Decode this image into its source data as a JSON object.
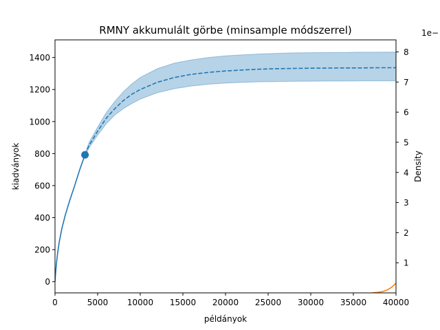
{
  "chart_data": {
    "type": "line",
    "title": "RMNY akkumulált görbe (minsample módszerrel)",
    "xlabel": "példányok",
    "ylabel": "kiadványok",
    "y2label": "Density",
    "y2_offset_text": "1e−",
    "xlim": [
      0,
      40000
    ],
    "ylim": [
      -70,
      1510
    ],
    "y2lim": [
      0,
      8.4
    ],
    "xticks": [
      0,
      5000,
      10000,
      15000,
      20000,
      25000,
      30000,
      35000,
      40000
    ],
    "xtick_labels": [
      "0",
      "5000",
      "10000",
      "15000",
      "20000",
      "25000",
      "30000",
      "35000",
      "40000"
    ],
    "yticks": [
      0,
      200,
      400,
      600,
      800,
      1000,
      1200,
      1400
    ],
    "ytick_labels": [
      "0",
      "200",
      "400",
      "600",
      "800",
      "1000",
      "1200",
      "1400"
    ],
    "y2ticks": [
      1,
      2,
      3,
      4,
      5,
      6,
      7,
      8
    ],
    "y2tick_labels": [
      "1",
      "2",
      "3",
      "4",
      "5",
      "6",
      "7",
      "8"
    ],
    "grid": false,
    "observed_point": {
      "x": 3520,
      "y": 792
    },
    "series": [
      {
        "role": "interpolation",
        "style": "solid",
        "color": "#1f77b4",
        "x": [
          0,
          50,
          150,
          300,
          500,
          800,
          1200,
          1700,
          2300,
          2900,
          3520
        ],
        "y": [
          0,
          40,
          105,
          175,
          248,
          330,
          415,
          503,
          598,
          700,
          792
        ]
      },
      {
        "role": "extrapolation",
        "style": "dashed",
        "color": "#1f77b4",
        "x": [
          3520,
          4000,
          5000,
          6000,
          7000,
          8000,
          9000,
          10000,
          12000,
          14000,
          16000,
          18000,
          20000,
          22000,
          24000,
          26000,
          28000,
          30000,
          32000,
          34000,
          36000,
          38000,
          40000
        ],
        "y": [
          792,
          852,
          940,
          1020,
          1080,
          1130,
          1170,
          1200,
          1245,
          1275,
          1295,
          1307,
          1316,
          1322,
          1327,
          1330,
          1332,
          1333,
          1334,
          1335,
          1335,
          1336,
          1336
        ]
      },
      {
        "role": "confidence-upper",
        "color": "#1f77b4",
        "x": [
          3520,
          4000,
          5000,
          6000,
          7000,
          8000,
          9000,
          10000,
          12000,
          14000,
          16000,
          18000,
          20000,
          22000,
          24000,
          26000,
          28000,
          30000,
          32000,
          34000,
          36000,
          38000,
          40000
        ],
        "y": [
          800,
          870,
          965,
          1055,
          1125,
          1185,
          1235,
          1275,
          1330,
          1365,
          1385,
          1400,
          1410,
          1417,
          1422,
          1426,
          1429,
          1430,
          1431,
          1432,
          1433,
          1433,
          1434
        ]
      },
      {
        "role": "confidence-lower",
        "color": "#1f77b4",
        "x": [
          3520,
          4000,
          5000,
          6000,
          7000,
          8000,
          9000,
          10000,
          12000,
          14000,
          16000,
          18000,
          20000,
          22000,
          24000,
          26000,
          28000,
          30000,
          32000,
          34000,
          36000,
          38000,
          40000
        ],
        "y": [
          784,
          836,
          915,
          985,
          1040,
          1080,
          1112,
          1140,
          1180,
          1205,
          1222,
          1233,
          1240,
          1245,
          1248,
          1250,
          1251,
          1252,
          1253,
          1253,
          1254,
          1254,
          1254
        ]
      },
      {
        "role": "density",
        "axis": "right",
        "color": "#ff7f0e",
        "x": [
          37200,
          38000,
          38500,
          39000,
          39500,
          40000
        ],
        "y": [
          0,
          0.02,
          0.05,
          0.1,
          0.19,
          0.32
        ]
      }
    ]
  }
}
